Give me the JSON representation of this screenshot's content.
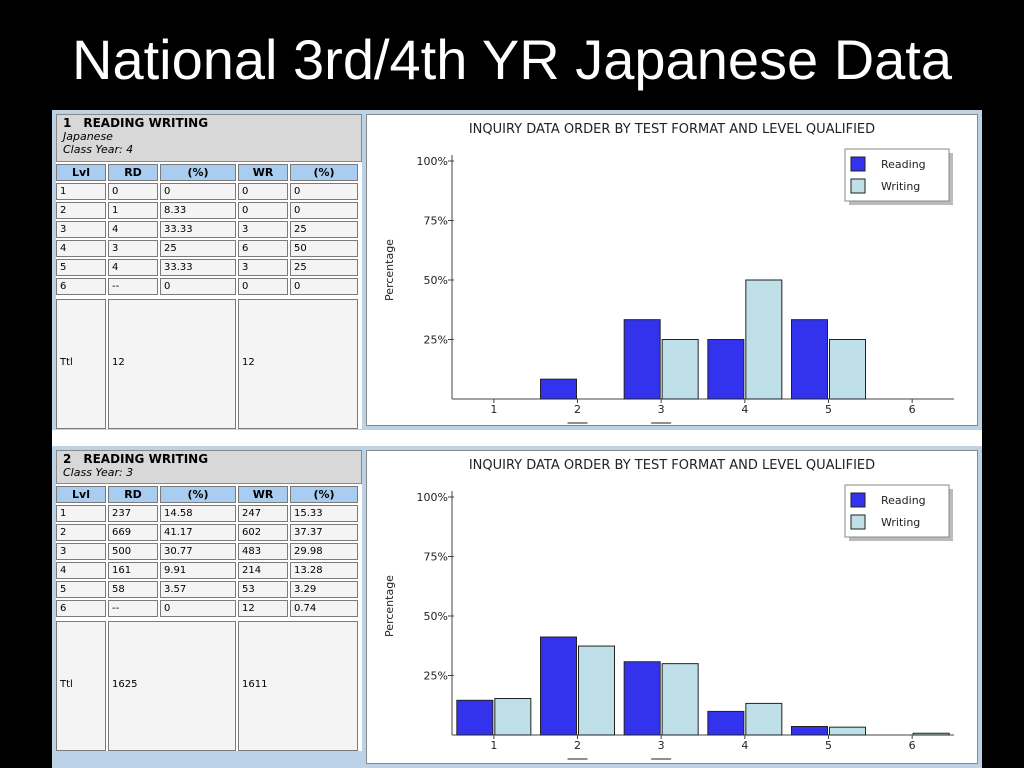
{
  "slide_title": "National 3rd/4th YR Japanese Data",
  "colors": {
    "reading": "#3333ee",
    "writing": "#bfe0e8",
    "header_cell": "#a9cdf0",
    "background": "#000000"
  },
  "panels": [
    {
      "number": "1",
      "heading": "READING WRITING",
      "language": "Japanese",
      "class_year": "Class Year: 4",
      "columns": [
        "Lvl",
        "RD",
        "(%)",
        "WR",
        "(%)"
      ],
      "rows": [
        [
          "1",
          "0",
          "0",
          "0",
          "0"
        ],
        [
          "2",
          "1",
          "8.33",
          "0",
          "0"
        ],
        [
          "3",
          "4",
          "33.33",
          "3",
          "25"
        ],
        [
          "4",
          "3",
          "25",
          "6",
          "50"
        ],
        [
          "5",
          "4",
          "33.33",
          "3",
          "25"
        ],
        [
          "6",
          "--",
          "0",
          "0",
          "0"
        ]
      ],
      "total": {
        "label": "Ttl",
        "rd": "12",
        "wr": "12"
      }
    },
    {
      "number": "2",
      "heading": "READING WRITING",
      "language": "",
      "class_year": "Class Year: 3",
      "columns": [
        "Lvl",
        "RD",
        "(%)",
        "WR",
        "(%)"
      ],
      "rows": [
        [
          "1",
          "237",
          "14.58",
          "247",
          "15.33"
        ],
        [
          "2",
          "669",
          "41.17",
          "602",
          "37.37"
        ],
        [
          "3",
          "500",
          "30.77",
          "483",
          "29.98"
        ],
        [
          "4",
          "161",
          "9.91",
          "214",
          "13.28"
        ],
        [
          "5",
          "58",
          "3.57",
          "53",
          "3.29"
        ],
        [
          "6",
          "--",
          "0",
          "12",
          "0.74"
        ]
      ],
      "total": {
        "label": "Ttl",
        "rd": "1625",
        "wr": "1611"
      }
    }
  ],
  "chart_data": [
    {
      "type": "bar",
      "title": "INQUIRY DATA ORDER BY TEST FORMAT AND LEVEL QUALIFIED",
      "ylabel": "Percentage",
      "xlabel": "",
      "categories": [
        "1",
        "2",
        "3",
        "4",
        "5",
        "6"
      ],
      "yticks": [
        "25%",
        "50%",
        "75%",
        "100%"
      ],
      "ylim": [
        0,
        100
      ],
      "legend_position": "top-right",
      "series": [
        {
          "name": "Reading",
          "values": [
            0,
            8.33,
            33.33,
            25,
            33.33,
            0
          ]
        },
        {
          "name": "Writing",
          "values": [
            0,
            0,
            25,
            50,
            25,
            0
          ]
        }
      ]
    },
    {
      "type": "bar",
      "title": "INQUIRY DATA ORDER BY TEST FORMAT AND LEVEL QUALIFIED",
      "ylabel": "Percentage",
      "xlabel": "",
      "categories": [
        "1",
        "2",
        "3",
        "4",
        "5",
        "6"
      ],
      "yticks": [
        "25%",
        "50%",
        "75%",
        "100%"
      ],
      "ylim": [
        0,
        100
      ],
      "legend_position": "top-right",
      "series": [
        {
          "name": "Reading",
          "values": [
            14.58,
            41.17,
            30.77,
            9.91,
            3.57,
            0
          ]
        },
        {
          "name": "Writing",
          "values": [
            15.33,
            37.37,
            29.98,
            13.28,
            3.29,
            0.74
          ]
        }
      ]
    }
  ]
}
